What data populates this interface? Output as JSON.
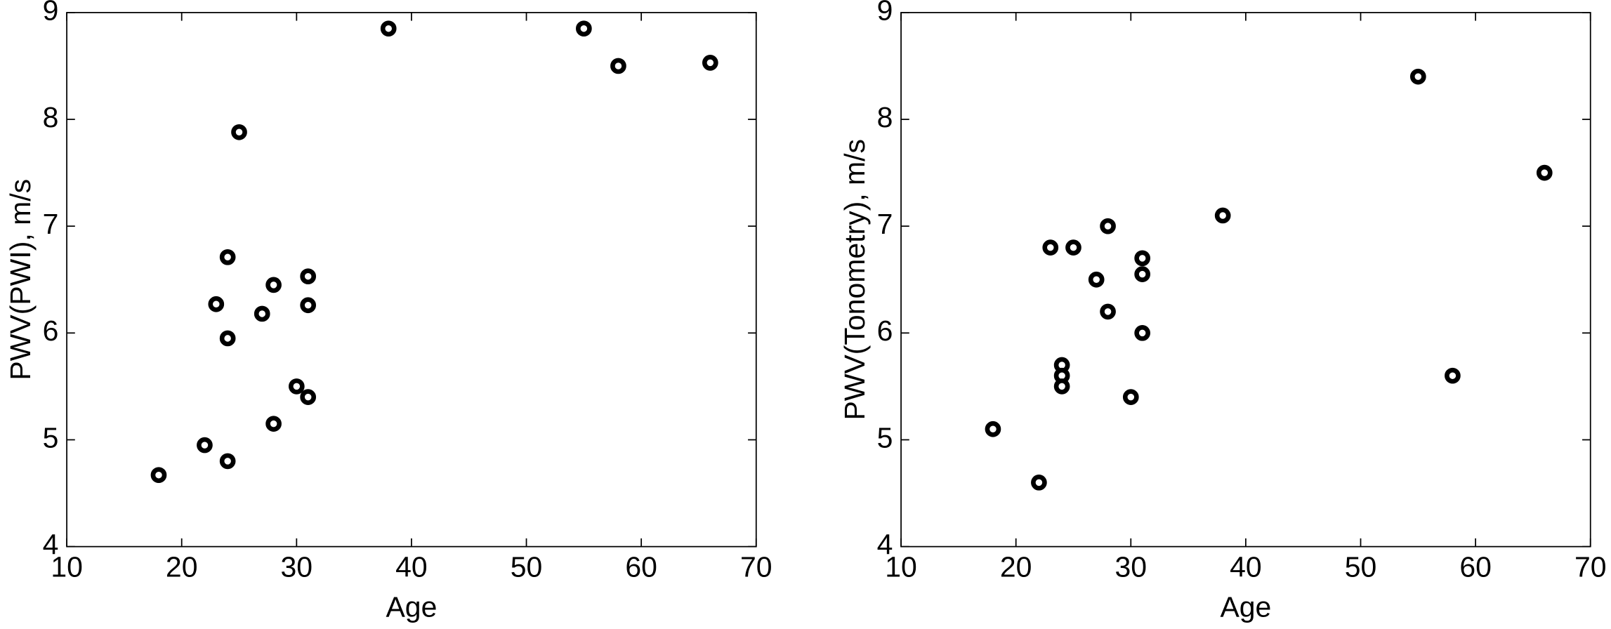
{
  "chart_data": [
    {
      "type": "scatter",
      "x_label": "Age",
      "y_label": "PWV(PWI), m/s",
      "color": "#000000",
      "grid": false,
      "x": [
        18,
        22,
        24,
        23,
        24,
        24,
        25,
        27,
        28,
        28,
        30,
        31,
        31,
        31,
        38,
        55,
        58,
        66
      ],
      "values": [
        4.67,
        4.95,
        4.8,
        6.27,
        5.95,
        6.71,
        7.88,
        6.18,
        6.45,
        5.15,
        5.5,
        5.4,
        6.26,
        6.53,
        8.85,
        8.85,
        8.5,
        8.53
      ],
      "xlim": [
        10,
        70
      ],
      "xticks": [
        10,
        20,
        30,
        40,
        50,
        60,
        70
      ],
      "ylim": [
        4,
        9
      ],
      "yticks": [
        4,
        5,
        6,
        7,
        8,
        9
      ]
    },
    {
      "type": "scatter",
      "x_label": "Age",
      "y_label": "PWV(Tonometry), m/s",
      "color": "#000000",
      "grid": false,
      "x": [
        18,
        22,
        23,
        25,
        24,
        24,
        24,
        27,
        28,
        28,
        30,
        31,
        31,
        31,
        38,
        55,
        58,
        66
      ],
      "values": [
        5.1,
        4.6,
        6.8,
        6.8,
        5.7,
        5.6,
        5.5,
        6.5,
        7.0,
        6.2,
        5.4,
        6.7,
        6.55,
        6.0,
        7.1,
        8.4,
        5.6,
        7.5
      ],
      "xlim": [
        10,
        70
      ],
      "xticks": [
        10,
        20,
        30,
        40,
        50,
        60,
        70
      ],
      "ylim": [
        4,
        9
      ],
      "yticks": [
        4,
        5,
        6,
        7,
        8,
        9
      ]
    }
  ]
}
